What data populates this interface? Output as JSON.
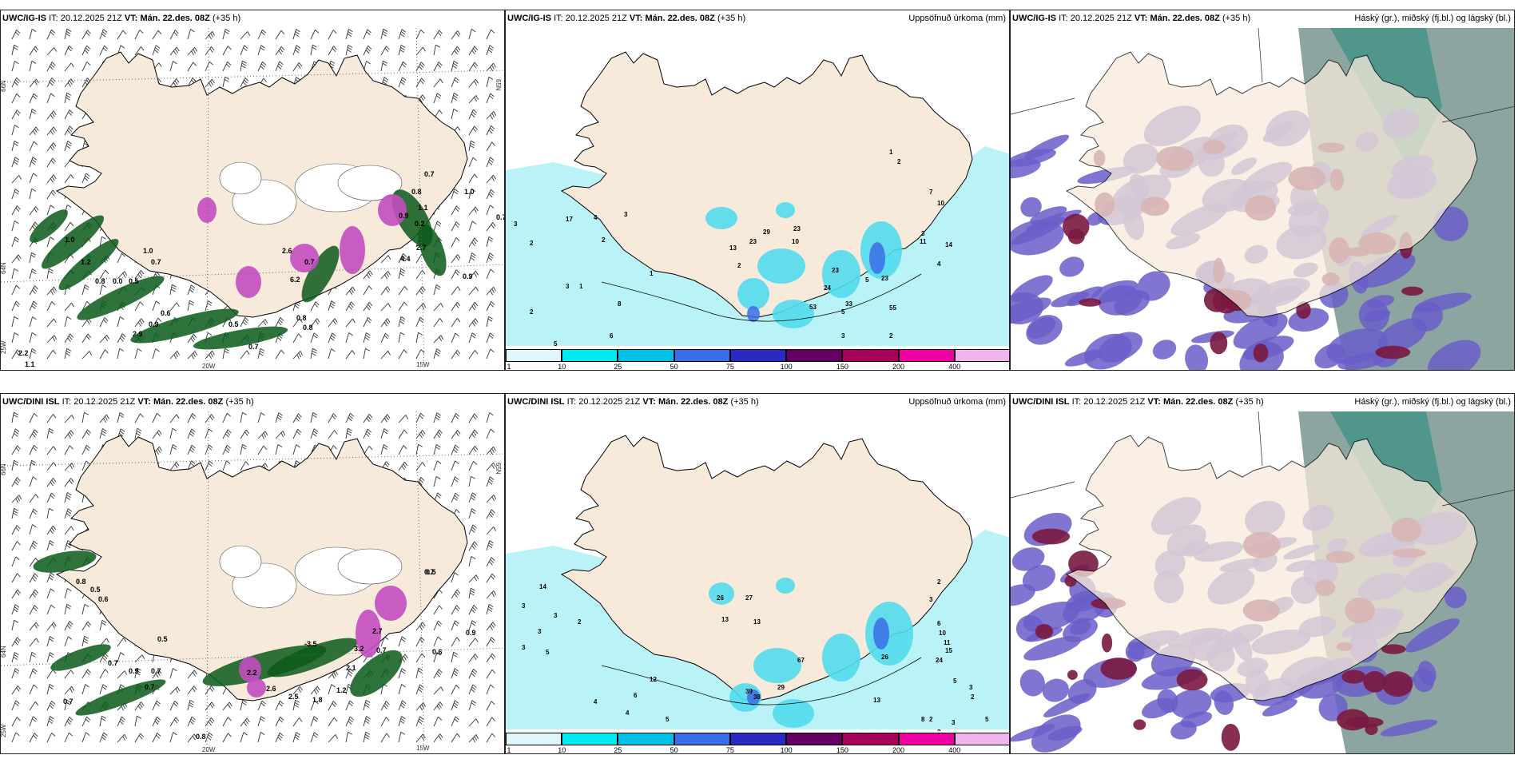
{
  "rows": [
    {
      "model": "UWC/IG-IS",
      "run_label": "IT:",
      "run_time": "20.12.2025 21Z",
      "valid_label": "VT:",
      "valid_time": "Mán. 22.des. 08Z",
      "lead": "(+35 h)",
      "wind_labels": [
        "0.7",
        "1.0",
        "0.7",
        "0.8",
        "1.0",
        "1.2",
        "0.8",
        "0.0",
        "0.5",
        "1.0",
        "0.7",
        "2.6",
        "0.7",
        "6.2",
        "0.9",
        "0.6",
        "0.9",
        "2.9",
        "0.5",
        "0.7",
        "0.8",
        "0.8",
        "1.1",
        "2.2",
        "2.7",
        "4.4",
        "0.2",
        "1.1",
        "0.9"
      ],
      "precip_labels": [
        "3",
        "17",
        "4",
        "2",
        "3",
        "2",
        "1",
        "29",
        "23",
        "13",
        "23",
        "10",
        "2",
        "1",
        "2",
        "7",
        "10",
        "3",
        "11",
        "14",
        "4",
        "5",
        "23",
        "33",
        "53",
        "24",
        "23",
        "5",
        "55",
        "3",
        "2",
        "4",
        "6",
        "6",
        "3",
        "1",
        "8",
        "4",
        "4",
        "2",
        "5",
        "6",
        "3",
        "3"
      ]
    },
    {
      "model": "UWC/DINI ISL",
      "run_label": "IT:",
      "run_time": "20.12.2025 21Z",
      "valid_label": "VT:",
      "valid_time": "Mán. 22.des. 08Z",
      "lead": "(+35 h)",
      "wind_labels": [
        "0.7",
        "0.8",
        "0.5",
        "0.6",
        "0.5",
        "0.7",
        "0.9",
        "0.7",
        "0.7",
        "2.2",
        "2.6",
        "2.5",
        "1.8",
        "1.2",
        "2.1",
        "3.2",
        "0.7",
        "2.7",
        "0.5",
        "0.6",
        "0.9",
        "0.7",
        "0.8",
        "-3.5"
      ],
      "precip_labels": [
        "14",
        "3",
        "3",
        "3",
        "3",
        "5",
        "2",
        "26",
        "13",
        "27",
        "13",
        "12",
        "6",
        "4",
        "4",
        "5",
        "39",
        "29",
        "38",
        "67",
        "26",
        "13",
        "2",
        "3",
        "6",
        "10",
        "11",
        "15",
        "24",
        "5",
        "8",
        "3",
        "2",
        "2",
        "3",
        "2",
        "5",
        "2"
      ]
    }
  ],
  "precip_title": "Uppsöfnuð úrkoma (mm)",
  "cloud_title": "Háský (gr.), miðský (fj.bl.) og lágský (bl.)",
  "colorbar": {
    "ticks": [
      "1",
      "10",
      "25",
      "50",
      "75",
      "100",
      "150",
      "200",
      "400"
    ],
    "colors": [
      "#e0f8fb",
      "#00eaf0",
      "#00c2e6",
      "#3a6ee8",
      "#2a2ac0",
      "#640064",
      "#a8005a",
      "#f000a0",
      "#f0b4ee"
    ]
  },
  "lat_labels": [
    "66N",
    "64N",
    "65N"
  ],
  "lon_labels": [
    "20W",
    "15W",
    "25W"
  ],
  "colors": {
    "land": "#f7eadb",
    "coast": "#000000",
    "sea": "#ffffff",
    "precip_light": "#b9f2f7",
    "precip_mid": "#52dbec",
    "wind_green": "#0a5a1a",
    "snow_purple": "#c24cc0",
    "cloud_high": "#6f8f88",
    "cloud_mid": "#6a5ec9",
    "cloud_low": "#7a1840"
  }
}
